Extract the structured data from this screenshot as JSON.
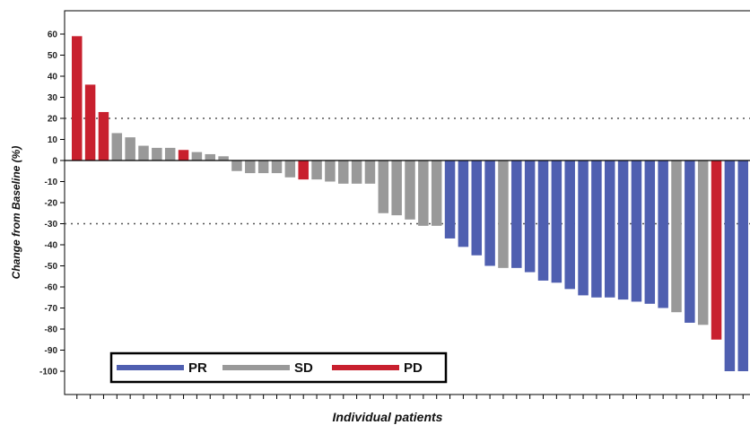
{
  "chart_data": {
    "type": "bar",
    "title": "",
    "xlabel": "Individual patients",
    "ylabel": "Change from Baseline (%)",
    "ylim": [
      -110,
      63
    ],
    "yticks": [
      60,
      50,
      40,
      30,
      20,
      10,
      0,
      -10,
      -20,
      -30,
      -40,
      -50,
      -60,
      -70,
      -80,
      -90,
      -100
    ],
    "reference_lines": [
      20,
      -30
    ],
    "legend": {
      "placement": "bottom-left",
      "entries": [
        {
          "key": "PR",
          "label": "PR",
          "color": "#4f5fb0"
        },
        {
          "key": "SD",
          "label": "SD",
          "color": "#999999"
        },
        {
          "key": "PD",
          "label": "PD",
          "color": "#c8202e"
        }
      ]
    },
    "values": [
      59,
      36,
      23,
      13,
      11,
      7,
      6,
      6,
      5,
      4,
      3,
      2,
      -5,
      -6,
      -6,
      -6,
      -8,
      -9,
      -9,
      -10,
      -11,
      -11,
      -11,
      -25,
      -26,
      -28,
      -31,
      -31,
      -37,
      -41,
      -45,
      -50,
      -51,
      -51,
      -53,
      -57,
      -58,
      -61,
      -64,
      -65,
      -65,
      -66,
      -67,
      -68,
      -70,
      -72,
      -77,
      -78,
      -85,
      -100,
      -100
    ],
    "categories_status": [
      "PD",
      "PD",
      "PD",
      "SD",
      "SD",
      "SD",
      "SD",
      "SD",
      "PD",
      "SD",
      "SD",
      "SD",
      "SD",
      "SD",
      "SD",
      "SD",
      "SD",
      "PD",
      "SD",
      "SD",
      "SD",
      "SD",
      "SD",
      "SD",
      "SD",
      "SD",
      "SD",
      "SD",
      "PR",
      "PR",
      "PR",
      "PR",
      "SD",
      "PR",
      "PR",
      "PR",
      "PR",
      "PR",
      "PR",
      "PR",
      "PR",
      "PR",
      "PR",
      "PR",
      "PR",
      "SD",
      "PR",
      "SD",
      "PD",
      "PR",
      "PR"
    ]
  }
}
